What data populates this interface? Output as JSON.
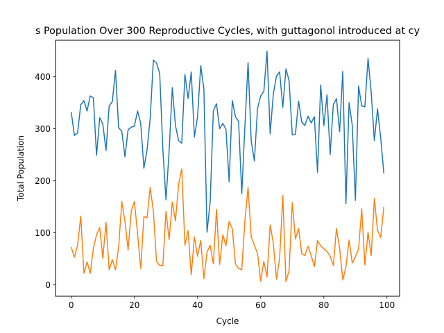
{
  "chart_data": {
    "type": "line",
    "title": "s Population Over 300 Reproductive Cycles, with guttagonol introduced at cy",
    "xlabel": "Cycle",
    "ylabel": "Total Population",
    "xlim": [
      -5,
      104
    ],
    "ylim": [
      -22,
      470
    ],
    "xticks": [
      0,
      20,
      40,
      60,
      80,
      100
    ],
    "yticks": [
      0,
      100,
      200,
      300,
      400
    ],
    "grid": false,
    "legend": "none",
    "x": [
      0,
      1,
      2,
      3,
      4,
      5,
      6,
      7,
      8,
      9,
      10,
      11,
      12,
      13,
      14,
      15,
      16,
      17,
      18,
      19,
      20,
      21,
      22,
      23,
      24,
      25,
      26,
      27,
      28,
      29,
      30,
      31,
      32,
      33,
      34,
      35,
      36,
      37,
      38,
      39,
      40,
      41,
      42,
      43,
      44,
      45,
      46,
      47,
      48,
      49,
      50,
      51,
      52,
      53,
      54,
      55,
      56,
      57,
      58,
      59,
      60,
      61,
      62,
      63,
      64,
      65,
      66,
      67,
      68,
      69,
      70,
      71,
      72,
      73,
      74,
      75,
      76,
      77,
      78,
      79,
      80,
      81,
      82,
      83,
      84,
      85,
      86,
      87,
      88,
      89,
      90,
      91,
      92,
      93,
      94,
      95,
      96,
      97,
      98,
      99
    ],
    "series": [
      {
        "color": "#1f77b4",
        "values": [
          331,
          287,
          292,
          346,
          354,
          334,
          363,
          359,
          249,
          321,
          309,
          258,
          344,
          352,
          412,
          302,
          295,
          246,
          298,
          303,
          305,
          334,
          310,
          224,
          259,
          320,
          432,
          426,
          407,
          261,
          163,
          258,
          379,
          306,
          277,
          272,
          404,
          358,
          409,
          284,
          323,
          421,
          377,
          101,
          160,
          334,
          348,
          300,
          310,
          299,
          198,
          354,
          323,
          314,
          175,
          305,
          427,
          276,
          238,
          339,
          363,
          372,
          449,
          290,
          367,
          401,
          409,
          341,
          415,
          392,
          288,
          289,
          353,
          313,
          306,
          324,
          311,
          323,
          216,
          384,
          306,
          365,
          250,
          346,
          358,
          294,
          410,
          156,
          350,
          307,
          162,
          382,
          344,
          342,
          435,
          370,
          277,
          338,
          283,
          215
        ]
      },
      {
        "color": "#ff7f0e",
        "values": [
          72,
          53,
          76,
          132,
          22,
          44,
          22,
          70,
          96,
          110,
          51,
          120,
          29,
          48,
          29,
          72,
          160,
          122,
          67,
          142,
          160,
          98,
          31,
          131,
          129,
          187,
          142,
          45,
          37,
          37,
          141,
          87,
          159,
          123,
          193,
          223,
          76,
          104,
          19,
          92,
          55,
          85,
          12,
          63,
          76,
          40,
          145,
          39,
          96,
          75,
          122,
          108,
          40,
          31,
          29,
          123,
          187,
          92,
          76,
          60,
          7,
          45,
          15,
          115,
          80,
          11,
          51,
          172,
          6,
          27,
          158,
          88,
          108,
          60,
          56,
          74,
          56,
          35,
          85,
          75,
          69,
          64,
          55,
          37,
          108,
          70,
          9,
          34,
          86,
          42,
          54,
          69,
          146,
          38,
          101,
          56,
          166,
          105,
          91,
          149
        ]
      }
    ]
  }
}
